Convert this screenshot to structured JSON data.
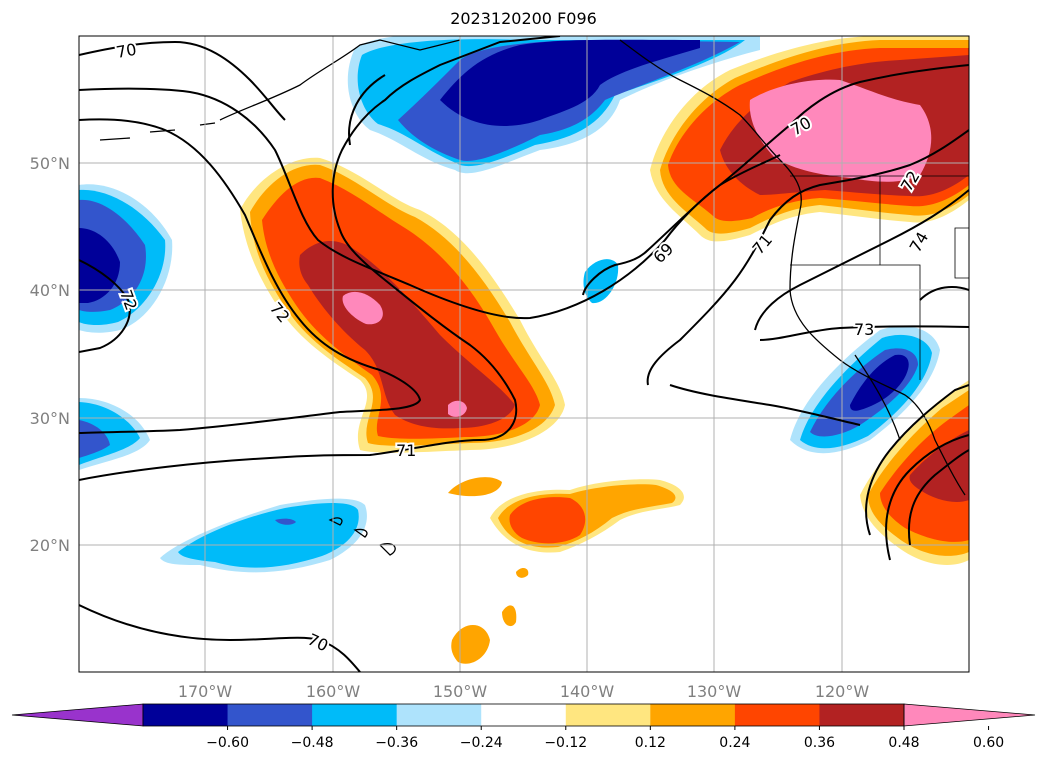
{
  "title": "2023120200 F096",
  "map": {
    "lat_labels": [
      "50°N",
      "40°N",
      "30°N",
      "20°N"
    ],
    "lon_labels": [
      "170°W",
      "160°W",
      "150°W",
      "140°W",
      "130°W",
      "120°W"
    ],
    "contour_labels": [
      "70",
      "72",
      "72",
      "71",
      "69",
      "71",
      "70",
      "72",
      "74",
      "73",
      "70"
    ],
    "gridlines": true
  },
  "colorbar": {
    "ticks": [
      "−0.60",
      "−0.48",
      "−0.36",
      "−0.24",
      "−0.12",
      "0.12",
      "0.24",
      "0.36",
      "0.48",
      "0.60"
    ],
    "colors": [
      "#9933cc",
      "#000099",
      "#3355cc",
      "#00bbf9",
      "#aee3fc",
      "#ffffff",
      "#ffe680",
      "#ffa500",
      "#ff4500",
      "#b22222",
      "#ff88bb"
    ],
    "extend": "both"
  },
  "legend_colors": {
    "neg_extreme": "#000099",
    "neg_strong": "#3355cc",
    "neg_mod": "#00bbf9",
    "neg_weak": "#aee3fc",
    "pos_weak": "#ffe680",
    "pos_mod": "#ffa500",
    "pos_strong": "#ff4500",
    "pos_vstrong": "#b22222",
    "pos_extreme": "#ff88bb"
  }
}
